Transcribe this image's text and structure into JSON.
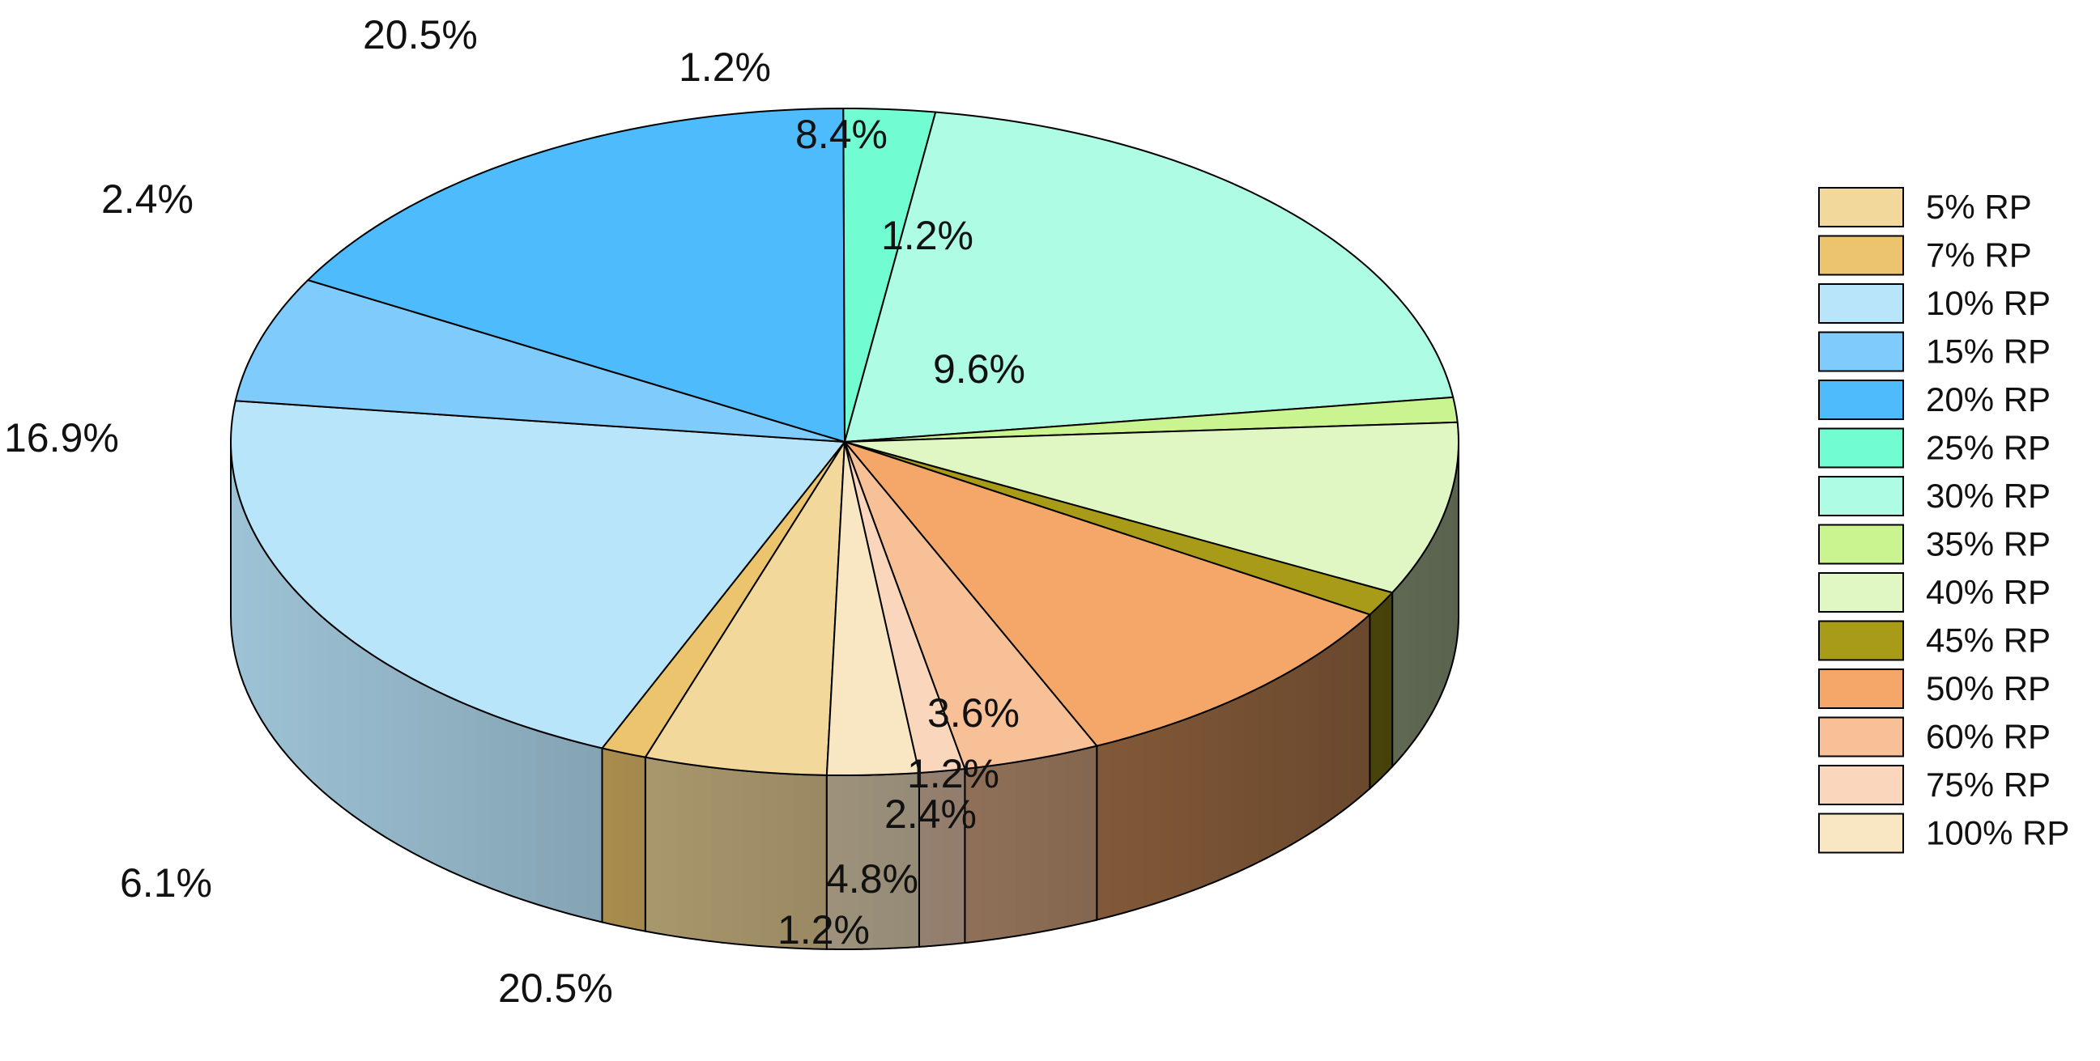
{
  "chart_data": {
    "type": "pie",
    "style": "3d-exploded-none",
    "legend_position": "right",
    "slices": [
      {
        "name": "5% RP",
        "value": 4.8,
        "label": "4.8%",
        "color": "#F2D89B"
      },
      {
        "name": "7% RP",
        "value": 1.2,
        "label": "1.2%",
        "color": "#EBC46D"
      },
      {
        "name": "10% RP",
        "value": 20.5,
        "label": "20.5%",
        "color": "#B9E5FB"
      },
      {
        "name": "15% RP",
        "value": 6.1,
        "label": "6.1%",
        "color": "#7FCCFC"
      },
      {
        "name": "20% RP",
        "value": 16.9,
        "label": "16.9%",
        "color": "#4DBBFC"
      },
      {
        "name": "25% RP",
        "value": 2.4,
        "label": "2.4%",
        "color": "#71FCD1"
      },
      {
        "name": "30% RP",
        "value": 20.5,
        "label": "20.5%",
        "color": "#ADFCE3"
      },
      {
        "name": "35% RP",
        "value": 1.2,
        "label": "1.2%",
        "color": "#CAF48F"
      },
      {
        "name": "40% RP",
        "value": 8.4,
        "label": "8.4%",
        "color": "#E0F7C3"
      },
      {
        "name": "45% RP",
        "value": 1.2,
        "label": "1.2%",
        "color": "#A79B18"
      },
      {
        "name": "50% RP",
        "value": 9.6,
        "label": "9.6%",
        "color": "#F4A769"
      },
      {
        "name": "60% RP",
        "value": 3.6,
        "label": "3.6%",
        "color": "#F7C096"
      },
      {
        "name": "75% RP",
        "value": 1.2,
        "label": "1.2%",
        "color": "#FAD7BC"
      },
      {
        "name": "100% RP",
        "value": 2.4,
        "label": "2.4%",
        "color": "#F9E7C4"
      }
    ]
  }
}
